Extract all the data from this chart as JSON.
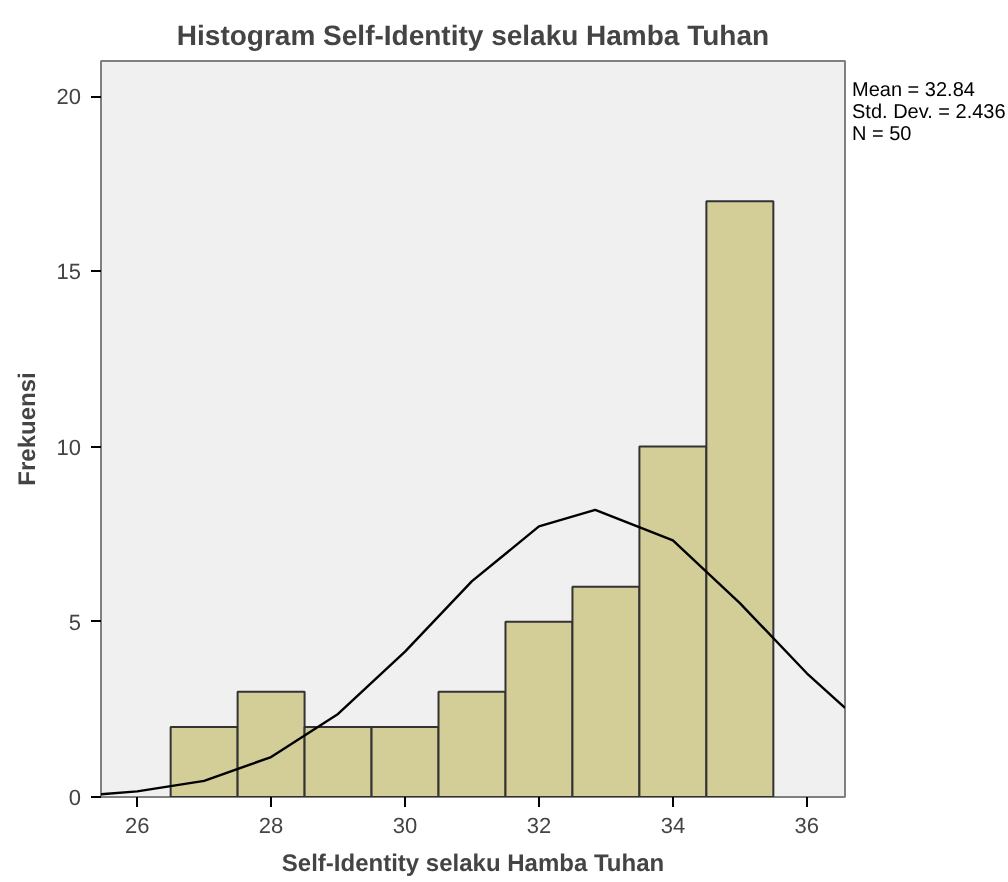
{
  "chart_data": {
    "type": "histogram",
    "title": "Histogram Self-Identity selaku Hamba Tuhan",
    "xlabel": "Self-Identity selaku Hamba Tuhan",
    "ylabel": "Frekuensi",
    "bins": [
      26.5,
      27.5,
      28.5,
      29.5,
      30.5,
      31.5,
      32.5,
      33.5,
      34.5,
      35.5
    ],
    "values": [
      2,
      3,
      2,
      2,
      3,
      5,
      6,
      10,
      17
    ],
    "color": "#d3ce97",
    "series": [
      {
        "type": "line",
        "color": "#000000",
        "x": [
          25.46,
          26,
          27,
          28,
          29,
          30,
          31,
          32,
          32.84,
          34,
          35,
          36,
          36.57
        ],
        "values": [
          0.08,
          0.16,
          0.46,
          1.14,
          2.37,
          4.15,
          6.16,
          7.72,
          8.19,
          7.32,
          5.53,
          3.53,
          2.54
        ]
      }
    ],
    "xlim": [
      25.46,
      36.57
    ],
    "ylim": [
      0,
      21
    ],
    "xticks": [
      26,
      28,
      30,
      32,
      34,
      36
    ],
    "yticks": [
      0,
      5,
      10,
      15,
      20
    ],
    "grid": false,
    "marker": "none",
    "line_style": "solid",
    "annotations": [
      "Mean = 32.84",
      "Std. Dev. = 2.436",
      "N = 50"
    ]
  }
}
